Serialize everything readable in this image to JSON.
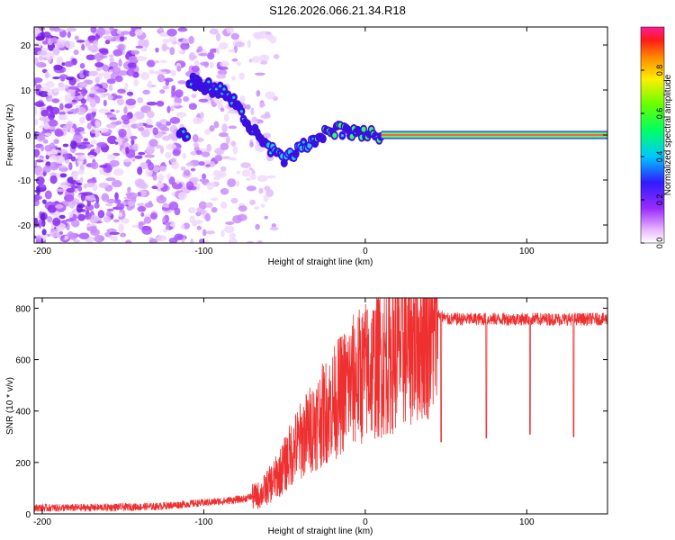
{
  "title": "S126.2026.066.21.34.R18",
  "chart_data": [
    {
      "type": "heatmap",
      "panel": "top",
      "xlabel": "Height of straight line (km)",
      "ylabel": "Frequency (Hz)",
      "xlim": [
        -205,
        150
      ],
      "ylim": [
        -24,
        24
      ],
      "xticks": [
        -200,
        -100,
        0,
        100
      ],
      "yticks": [
        -20,
        -10,
        0,
        10,
        20
      ],
      "colorbar": {
        "label": "Normalized spectral amplitude",
        "ticks": [
          0.0,
          0.2,
          0.4,
          0.6,
          0.8
        ],
        "range": [
          0,
          1
        ]
      },
      "ridge": {
        "description_points": [
          {
            "x": -110,
            "y": 12
          },
          {
            "x": -100,
            "y": 11
          },
          {
            "x": -90,
            "y": 10
          },
          {
            "x": -80,
            "y": 7
          },
          {
            "x": -70,
            "y": 1
          },
          {
            "x": -60,
            "y": -3
          },
          {
            "x": -50,
            "y": -6
          },
          {
            "x": -40,
            "y": -3
          },
          {
            "x": -30,
            "y": -1
          },
          {
            "x": -20,
            "y": 1
          },
          {
            "x": -10,
            "y": 1
          },
          {
            "x": 0,
            "y": 0
          },
          {
            "x": 10,
            "y": 0
          },
          {
            "x": 150,
            "y": 0
          }
        ],
        "steady_from_x": 10,
        "steady_frequency": 0
      }
    },
    {
      "type": "line",
      "panel": "bottom",
      "xlabel": "Height of straight line (km)",
      "ylabel": "SNR (10 * v/v)",
      "xlim": [
        -205,
        150
      ],
      "ylim": [
        0,
        840
      ],
      "xticks": [
        -200,
        -100,
        0,
        100
      ],
      "yticks": [
        0,
        200,
        400,
        600,
        800
      ],
      "color": "#ee3030",
      "series": [
        {
          "name": "SNR",
          "x": [
            -205,
            -180,
            -150,
            -130,
            -110,
            -90,
            -75,
            -65,
            -55,
            -50,
            -45,
            -40,
            -30,
            -20,
            -10,
            0,
            10,
            20,
            30,
            40,
            45,
            50,
            60,
            80,
            100,
            120,
            150
          ],
          "y": [
            25,
            25,
            28,
            30,
            40,
            50,
            60,
            80,
            150,
            200,
            260,
            300,
            380,
            450,
            530,
            580,
            620,
            670,
            720,
            760,
            780,
            760,
            760,
            760,
            760,
            760,
            760
          ]
        }
      ],
      "dips": [
        {
          "x": 47,
          "y": 280
        },
        {
          "x": 75,
          "y": 295
        },
        {
          "x": 102,
          "y": 310
        },
        {
          "x": 129,
          "y": 300
        }
      ]
    }
  ]
}
